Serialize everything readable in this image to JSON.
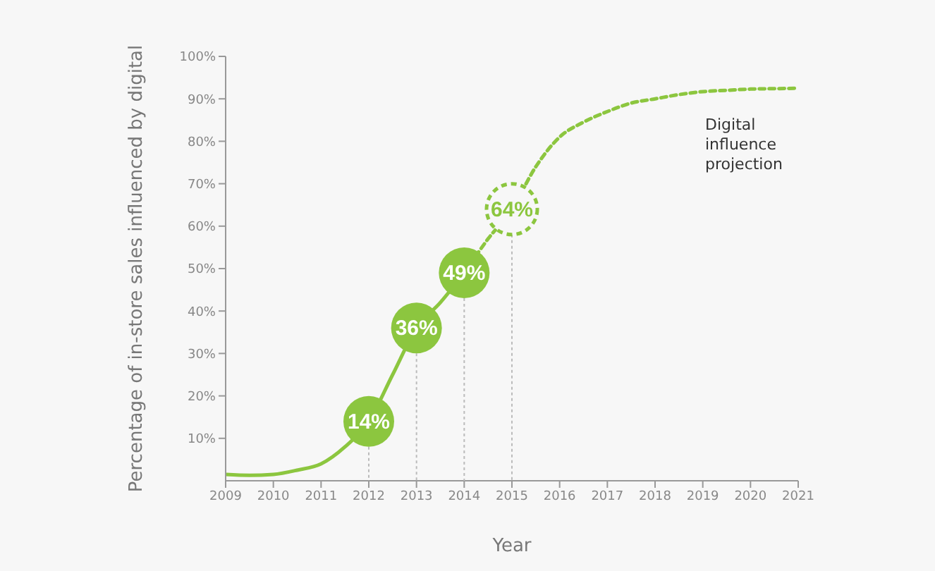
{
  "chart_data": {
    "type": "line",
    "xlabel": "Year",
    "ylabel": "Percentage of in-store sales influenced by digital",
    "xlim": [
      2009,
      2021
    ],
    "xticks": [
      2009,
      2010,
      2011,
      2012,
      2013,
      2014,
      2015,
      2016,
      2017,
      2018,
      2019,
      2020,
      2021
    ],
    "ylim": [
      0,
      100
    ],
    "yticks": [
      {
        "value": 10,
        "label": "10%"
      },
      {
        "value": 20,
        "label": "20%"
      },
      {
        "value": 30,
        "label": "30%"
      },
      {
        "value": 40,
        "label": "40%"
      },
      {
        "value": 50,
        "label": "50%"
      },
      {
        "value": 60,
        "label": "60%"
      },
      {
        "value": 70,
        "label": "70%"
      },
      {
        "value": 80,
        "label": "80%"
      },
      {
        "value": 90,
        "label": "90%"
      },
      {
        "value": 100,
        "label": "100%"
      }
    ],
    "annotations": [
      "Digital influence projection"
    ],
    "series": [
      {
        "color": "#8cc63f",
        "line_style": "solid",
        "x": [
          2009,
          2009.5,
          2010,
          2010.5,
          2011,
          2011.5,
          2012,
          2012.5,
          2013,
          2013.5,
          2014
        ],
        "values": [
          1.5,
          1.3,
          1.5,
          2.5,
          4,
          8,
          14,
          25,
          36,
          42,
          49
        ]
      },
      {
        "color": "#8cc63f",
        "line_style": "dashed",
        "x": [
          2014,
          2014.5,
          2015,
          2015.5,
          2016,
          2016.5,
          2017,
          2017.5,
          2018,
          2018.5,
          2019,
          2019.5,
          2020,
          2020.5,
          2021
        ],
        "values": [
          49,
          57,
          64,
          74,
          81,
          84.5,
          87,
          89,
          90,
          91,
          91.7,
          92,
          92.3,
          92.4,
          92.5
        ]
      },
      {
        "type": "scatter",
        "color": "#8cc63f",
        "marker": "circle",
        "x": [
          2012,
          2013,
          2014
        ],
        "values": [
          14,
          36,
          49
        ],
        "value_labels": [
          "14%",
          "36%",
          "49%"
        ]
      },
      {
        "type": "scatter",
        "color": "#8cc63f",
        "marker": "circle",
        "line_style": "dashed",
        "x": [
          2015
        ],
        "values": [
          64
        ],
        "value_labels": [
          "64%"
        ]
      }
    ]
  }
}
